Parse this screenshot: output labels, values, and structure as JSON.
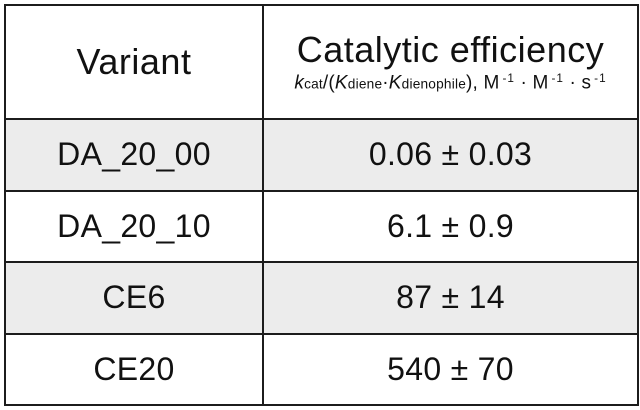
{
  "table": {
    "header": {
      "variant_label": "Variant",
      "efficiency_title": "Catalytic efficiency",
      "efficiency_formula_plain": "kcat/(Kdiene·Kdienophile), M⁻¹ · M⁻¹ · s⁻¹",
      "efficiency_formula_parts": [
        {
          "t": "k",
          "s": "it"
        },
        {
          "t": "cat",
          "s": "sb"
        },
        {
          "t": "/(",
          "s": ""
        },
        {
          "t": "K",
          "s": "it"
        },
        {
          "t": "diene",
          "s": "sb"
        },
        {
          "t": "·",
          "s": ""
        },
        {
          "t": "K",
          "s": "it"
        },
        {
          "t": "dienophile",
          "s": "sb"
        },
        {
          "t": "), M",
          "s": ""
        },
        {
          "t": "-1",
          "s": "sp"
        },
        {
          "t": " · M",
          "s": ""
        },
        {
          "t": "-1",
          "s": "sp"
        },
        {
          "t": " · s",
          "s": ""
        },
        {
          "t": "-1",
          "s": "sp"
        }
      ]
    },
    "rows": [
      {
        "variant": "DA_20_00",
        "value": "0.06 ± 0.03"
      },
      {
        "variant": "DA_20_10",
        "value": "6.1 ± 0.9"
      },
      {
        "variant": "CE6",
        "value": "87 ± 14"
      },
      {
        "variant": "CE20",
        "value": "540 ± 70"
      }
    ]
  },
  "colors": {
    "background": "#ffffff",
    "border": "#1c1c1c",
    "alt_row_bg": "#ececec",
    "text": "#111111"
  },
  "chart_data": {
    "type": "table",
    "title": "Catalytic efficiency of variants",
    "columns": [
      "Variant",
      "Catalytic efficiency kcat/(Kdiene·Kdienophile), M^-1 · M^-1 · s^-1"
    ],
    "rows": [
      [
        "DA_20_00",
        "0.06 ± 0.03"
      ],
      [
        "DA_20_10",
        "6.1 ± 0.9"
      ],
      [
        "CE6",
        "87 ± 14"
      ],
      [
        "CE20",
        "540 ± 70"
      ]
    ],
    "values": [
      0.06,
      6.1,
      87,
      540
    ],
    "errors": [
      0.03,
      0.9,
      14,
      70
    ],
    "units": "M^-1 · M^-1 · s^-1"
  }
}
